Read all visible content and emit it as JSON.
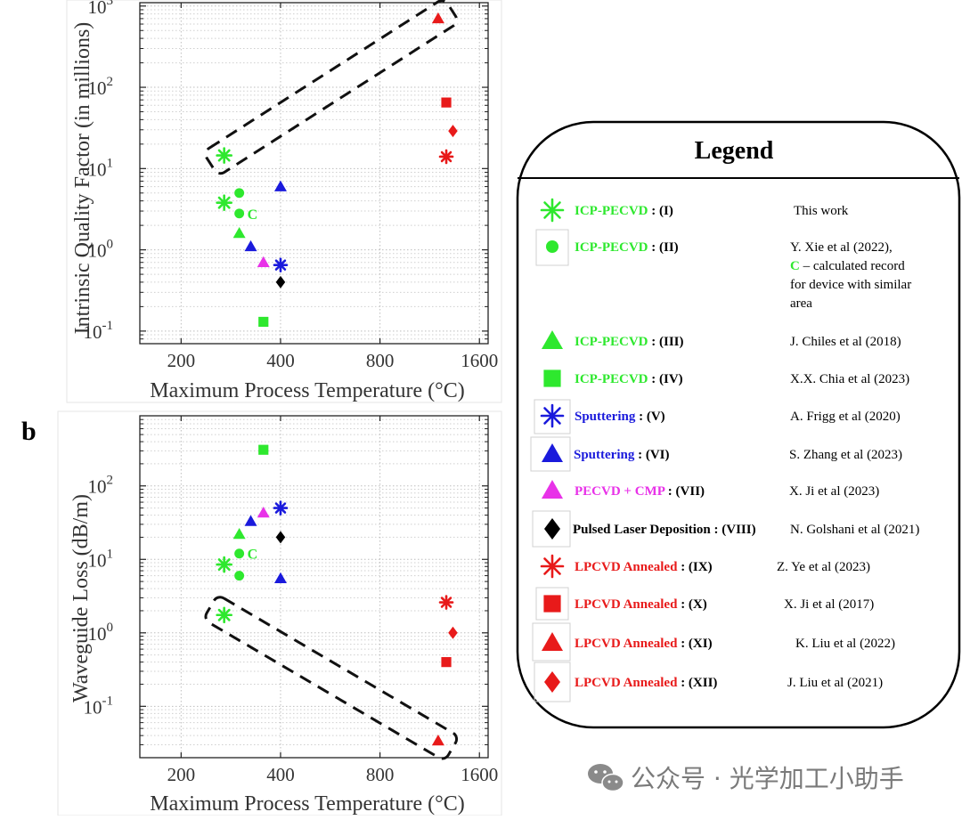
{
  "panel_b_label": "b",
  "legend": {
    "title": "Legend",
    "entries": [
      {
        "id": "I",
        "name": "ICP-PECVD",
        "suffix": " : (I)",
        "color": "#2ee82e",
        "marker": "asterisk",
        "ref": [
          "This work"
        ]
      },
      {
        "id": "II",
        "name": "ICP-PECVD",
        "suffix": " : (II)",
        "color": "#2ee82e",
        "marker": "circle",
        "ref": [
          "Y. Xie et al (2022),",
          "– calculated record",
          "for device with similar",
          "area"
        ],
        "ref_c": "C"
      },
      {
        "id": "III",
        "name": "ICP-PECVD",
        "suffix": " : (III)",
        "color": "#2ee82e",
        "marker": "triangle",
        "ref": [
          "J. Chiles et al (2018)"
        ]
      },
      {
        "id": "IV",
        "name": "ICP-PECVD",
        "suffix": " : (IV)",
        "color": "#2ee82e",
        "marker": "square",
        "ref": [
          "X.X. Chia et al (2023)"
        ]
      },
      {
        "id": "V",
        "name": "Sputtering",
        "suffix": " : (V)",
        "color": "#1a1adc",
        "marker": "asterisk",
        "ref": [
          "A. Frigg et al (2020)"
        ]
      },
      {
        "id": "VI",
        "name": "Sputtering",
        "suffix": " : (VI)",
        "color": "#1a1adc",
        "marker": "triangle",
        "ref": [
          "S. Zhang et al (2023)"
        ]
      },
      {
        "id": "VII",
        "name": "PECVD + CMP",
        "suffix": " : (VII)",
        "color": "#e832e8",
        "marker": "triangle",
        "ref": [
          "X. Ji et al (2023)"
        ]
      },
      {
        "id": "VIII",
        "name": "Pulsed Laser Deposition",
        "suffix": " : (VIII)",
        "color": "#000000",
        "marker": "diamond",
        "ref": [
          "N. Golshani et al (2021)"
        ]
      },
      {
        "id": "IX",
        "name": "LPCVD Annealed",
        "suffix": " : (IX)",
        "color": "#e81a1a",
        "marker": "asterisk",
        "ref": [
          "Z. Ye et al (2023)"
        ]
      },
      {
        "id": "X",
        "name": "LPCVD Annealed",
        "suffix": " : (X)",
        "color": "#e81a1a",
        "marker": "square",
        "ref": [
          "X. Ji et al (2017)"
        ]
      },
      {
        "id": "XI",
        "name": "LPCVD Annealed",
        "suffix": " : (XI)",
        "color": "#e81a1a",
        "marker": "triangle",
        "ref": [
          "K. Liu et al (2022)"
        ]
      },
      {
        "id": "XII",
        "name": "LPCVD Annealed",
        "suffix": " : (XII)",
        "color": "#e81a1a",
        "marker": "diamond",
        "ref": [
          "J. Liu et al (2021)"
        ]
      }
    ]
  },
  "watermark": "公众号 · 光学加工小助手",
  "chart_data": [
    {
      "type": "scatter",
      "title": "",
      "xlabel": "Maximum Process Temperature (°C)",
      "ylabel": "Intrinsic Quality Factor (in millions)",
      "xscale": "log",
      "yscale": "log",
      "xlim": [
        150,
        1700
      ],
      "ylim": [
        0.07,
        1100
      ],
      "xticks": [
        200,
        400,
        800,
        1600
      ],
      "xtick_labels": [
        "200",
        "400",
        "800",
        "1600"
      ],
      "yticks": [
        0.1,
        1,
        10,
        100,
        1000
      ],
      "ytick_labels": [
        [
          "10",
          "-1"
        ],
        [
          "10",
          "0"
        ],
        [
          "10",
          "1"
        ],
        [
          "10",
          "2"
        ],
        [
          "10",
          "3"
        ]
      ],
      "grid": true,
      "points": [
        {
          "series": "I",
          "x": 270,
          "y": 14.5
        },
        {
          "series": "I",
          "x": 270,
          "y": 3.8
        },
        {
          "series": "II",
          "x": 300,
          "y": 5.0
        },
        {
          "series": "II",
          "x": 300,
          "y": 2.8,
          "label": "C"
        },
        {
          "series": "III",
          "x": 300,
          "y": 1.6
        },
        {
          "series": "IV",
          "x": 355,
          "y": 0.13
        },
        {
          "series": "V",
          "x": 400,
          "y": 0.65
        },
        {
          "series": "VI",
          "x": 325,
          "y": 1.1
        },
        {
          "series": "VI",
          "x": 400,
          "y": 6.0
        },
        {
          "series": "VII",
          "x": 355,
          "y": 0.7
        },
        {
          "series": "VIII",
          "x": 400,
          "y": 0.4
        },
        {
          "series": "IX",
          "x": 1270,
          "y": 14
        },
        {
          "series": "X",
          "x": 1270,
          "y": 65
        },
        {
          "series": "XI",
          "x": 1200,
          "y": 700
        },
        {
          "series": "XII",
          "x": 1330,
          "y": 29
        }
      ],
      "annotation": "dashed box enclosing (I) at 14.5 and (XI) at 700"
    },
    {
      "type": "scatter",
      "title": "",
      "xlabel": "Maximum Process Temperature (°C)",
      "ylabel": "Waveguide Loss (dB/m)",
      "xscale": "log",
      "yscale": "log",
      "xlim": [
        150,
        1700
      ],
      "ylim": [
        0.02,
        900
      ],
      "xticks": [
        200,
        400,
        800,
        1600
      ],
      "xtick_labels": [
        "200",
        "400",
        "800",
        "1600"
      ],
      "yticks": [
        0.1,
        1,
        10,
        100
      ],
      "ytick_labels": [
        [
          "10",
          "-1"
        ],
        [
          "10",
          "0"
        ],
        [
          "10",
          "1"
        ],
        [
          "10",
          "2"
        ]
      ],
      "grid": true,
      "points": [
        {
          "series": "I",
          "x": 270,
          "y": 1.75
        },
        {
          "series": "I",
          "x": 270,
          "y": 8.5
        },
        {
          "series": "II",
          "x": 300,
          "y": 12,
          "label": "C"
        },
        {
          "series": "II",
          "x": 300,
          "y": 6
        },
        {
          "series": "III",
          "x": 300,
          "y": 22
        },
        {
          "series": "IV",
          "x": 355,
          "y": 310
        },
        {
          "series": "V",
          "x": 400,
          "y": 50
        },
        {
          "series": "VI",
          "x": 325,
          "y": 33
        },
        {
          "series": "VI",
          "x": 400,
          "y": 5.5
        },
        {
          "series": "VII",
          "x": 355,
          "y": 43
        },
        {
          "series": "VIII",
          "x": 400,
          "y": 20
        },
        {
          "series": "IX",
          "x": 1270,
          "y": 2.6
        },
        {
          "series": "X",
          "x": 1270,
          "y": 0.4
        },
        {
          "series": "XI",
          "x": 1200,
          "y": 0.034
        },
        {
          "series": "XII",
          "x": 1330,
          "y": 1.0
        }
      ],
      "annotation": "dashed box enclosing (I) at 1.75 and (XI) at 0.034"
    }
  ]
}
